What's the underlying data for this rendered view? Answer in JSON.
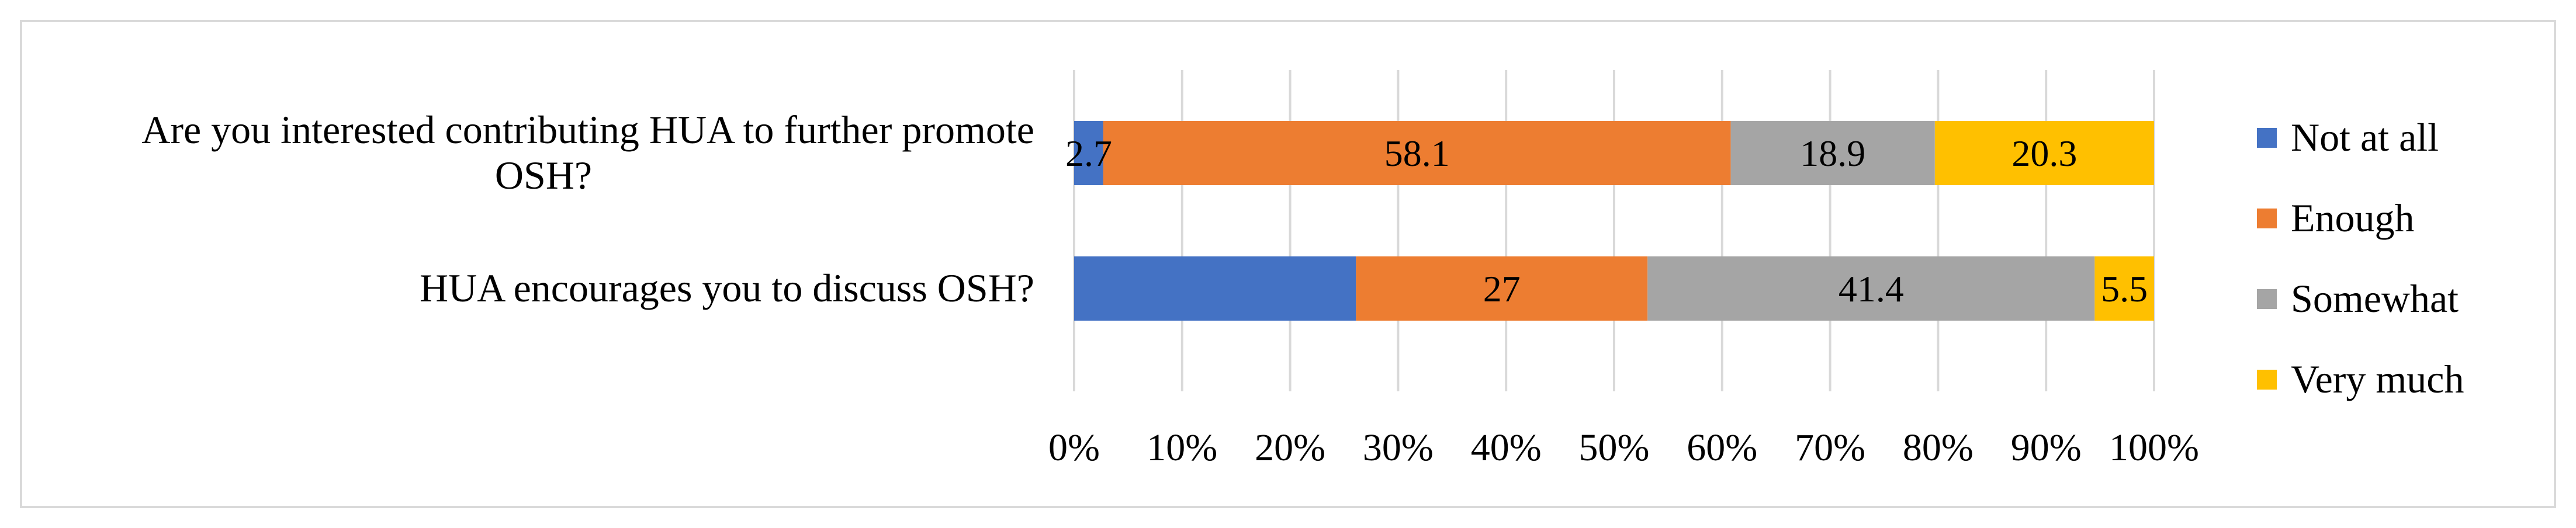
{
  "chart_data": {
    "type": "bar",
    "orientation": "horizontal",
    "stacked": true,
    "categories": [
      [
        "Are you interested contributing HUA to further promote",
        "OSH?"
      ],
      [
        "HUA encourages you to discuss OSH?"
      ]
    ],
    "series": [
      {
        "name": "Not at all",
        "color": "#4472C4",
        "values": [
          2.7,
          26.1
        ],
        "labels": [
          "2.7",
          ""
        ]
      },
      {
        "name": "Enough",
        "color": "#ED7D31",
        "values": [
          58.1,
          27
        ],
        "labels": [
          "58.1",
          "27"
        ]
      },
      {
        "name": "Somewhat",
        "color": "#A5A5A5",
        "values": [
          18.9,
          41.4
        ],
        "labels": [
          "18.9",
          "41.4"
        ]
      },
      {
        "name": "Very much",
        "color": "#FFC000",
        "values": [
          20.3,
          5.5
        ],
        "labels": [
          "20.3",
          "5.5"
        ]
      }
    ],
    "xlim": [
      0,
      100
    ],
    "xticks": [
      "0%",
      "10%",
      "20%",
      "30%",
      "40%",
      "50%",
      "60%",
      "70%",
      "80%",
      "90%",
      "100%"
    ],
    "grid": true,
    "legend": "right"
  }
}
